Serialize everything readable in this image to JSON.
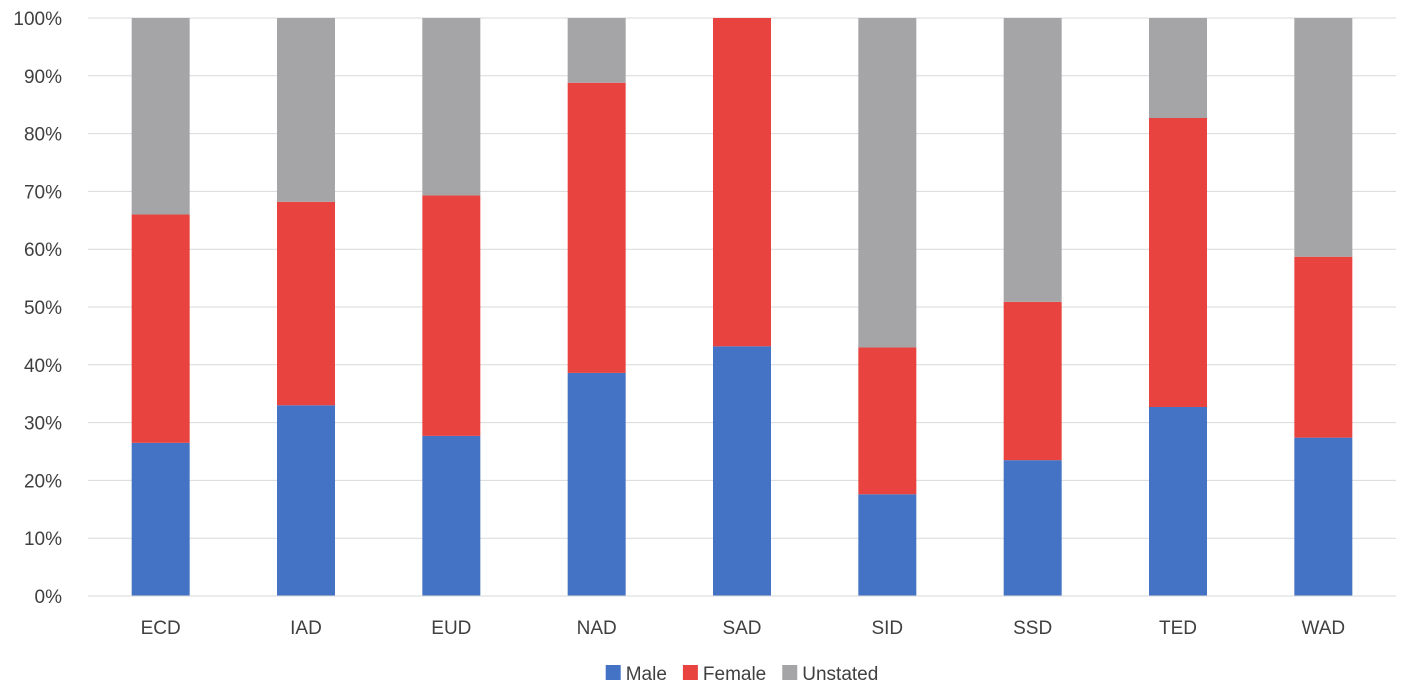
{
  "chart_data": {
    "type": "bar",
    "stacked": true,
    "percent_stacked": true,
    "title": "",
    "xlabel": "",
    "ylabel": "",
    "ylim": [
      0,
      100
    ],
    "yticks": [
      "0%",
      "10%",
      "20%",
      "30%",
      "40%",
      "50%",
      "60%",
      "70%",
      "80%",
      "90%",
      "100%"
    ],
    "grid": true,
    "legend_position": "bottom",
    "categories": [
      "ECD",
      "IAD",
      "EUD",
      "NAD",
      "SAD",
      "SID",
      "SSD",
      "TED",
      "WAD"
    ],
    "series": [
      {
        "name": "Male",
        "color": "#4472c4",
        "values": [
          26.5,
          33,
          27.7,
          38.6,
          43.2,
          17.6,
          23.5,
          32.7,
          27.4
        ]
      },
      {
        "name": "Female",
        "color": "#e8433f",
        "values": [
          39.5,
          35.2,
          41.6,
          50.2,
          56.8,
          25.4,
          27.4,
          50,
          31.3
        ]
      },
      {
        "name": "Unstated",
        "color": "#a5a5a8",
        "values": [
          34,
          31.8,
          30.7,
          11.2,
          0,
          57,
          49.1,
          17.3,
          41.3
        ]
      }
    ]
  }
}
